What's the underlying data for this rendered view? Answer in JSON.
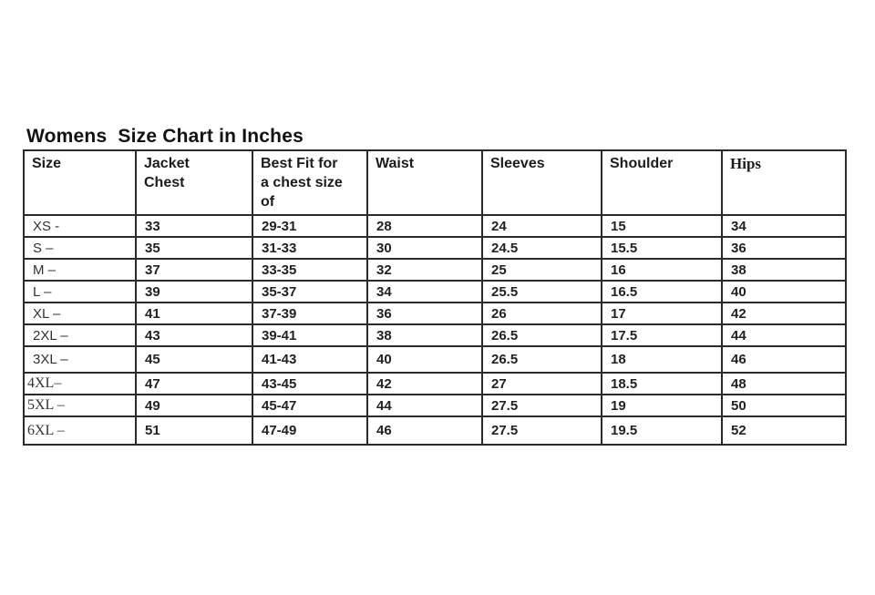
{
  "title": "Womens  Size Chart in Inches",
  "colors": {
    "background": "#ffffff",
    "border": "#2b2b2b",
    "title_text": "#121212",
    "cell_text": "#222222"
  },
  "table": {
    "columns": [
      {
        "label": "Size",
        "serif": false
      },
      {
        "label": "Jacket Chest",
        "serif": false
      },
      {
        "label": "Best Fit for a chest size of",
        "serif": false
      },
      {
        "label": "Waist",
        "serif": false
      },
      {
        "label": "Sleeves",
        "serif": false
      },
      {
        "label": "Shoulder",
        "serif": false
      },
      {
        "label": "Hips",
        "serif": true
      }
    ],
    "rows": [
      {
        "cells": [
          "XS -",
          "33",
          "29-31",
          "28",
          "24",
          "15",
          "34"
        ],
        "serif_label": false
      },
      {
        "cells": [
          "S –",
          "35",
          "31-33",
          "30",
          "24.5",
          "15.5",
          "36"
        ],
        "serif_label": false
      },
      {
        "cells": [
          "M –",
          "37",
          "33-35",
          "32",
          "25",
          "16",
          "38"
        ],
        "serif_label": false
      },
      {
        "cells": [
          "L –",
          "39",
          "35-37",
          "34",
          "25.5",
          "16.5",
          "40"
        ],
        "serif_label": false
      },
      {
        "cells": [
          "XL –",
          "41",
          "37-39",
          "36",
          "26",
          "17",
          "42"
        ],
        "serif_label": false
      },
      {
        "cells": [
          "2XL –",
          "43",
          "39-41",
          "38",
          "26.5",
          "17.5",
          "44"
        ],
        "serif_label": false
      },
      {
        "cells": [
          "3XL –",
          "45",
          "41-43",
          "40",
          "26.5",
          "18",
          "46"
        ],
        "serif_label": false
      },
      {
        "cells": [
          "4XL–",
          "47",
          "43-45",
          "42",
          "27",
          "18.5",
          "48"
        ],
        "serif_label": true
      },
      {
        "cells": [
          "5XL –",
          "49",
          "45-47",
          "44",
          "27.5",
          "19",
          "50"
        ],
        "serif_label": true
      },
      {
        "cells": [
          "6XL –",
          "51",
          "47-49",
          "46",
          "27.5",
          "19.5",
          "52"
        ],
        "serif_label": true
      }
    ]
  }
}
